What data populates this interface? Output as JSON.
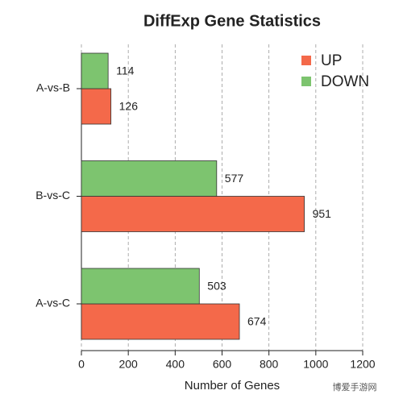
{
  "chart_data": {
    "type": "barh",
    "title": "DiffExp Gene Statistics",
    "xlabel": "Number of Genes",
    "categories": [
      "A-vs-B",
      "B-vs-C",
      "A-vs-C"
    ],
    "series": [
      {
        "name": "UP",
        "color": "#f4694a",
        "values": [
          126,
          951,
          674
        ]
      },
      {
        "name": "DOWN",
        "color": "#7dc46f",
        "values": [
          114,
          577,
          503
        ]
      }
    ],
    "xlim": [
      0,
      1200
    ],
    "xticks": [
      0,
      200,
      400,
      600,
      800,
      1000,
      1200
    ],
    "grid": true,
    "legend": "upper right",
    "watermark": "博爱手游网"
  }
}
